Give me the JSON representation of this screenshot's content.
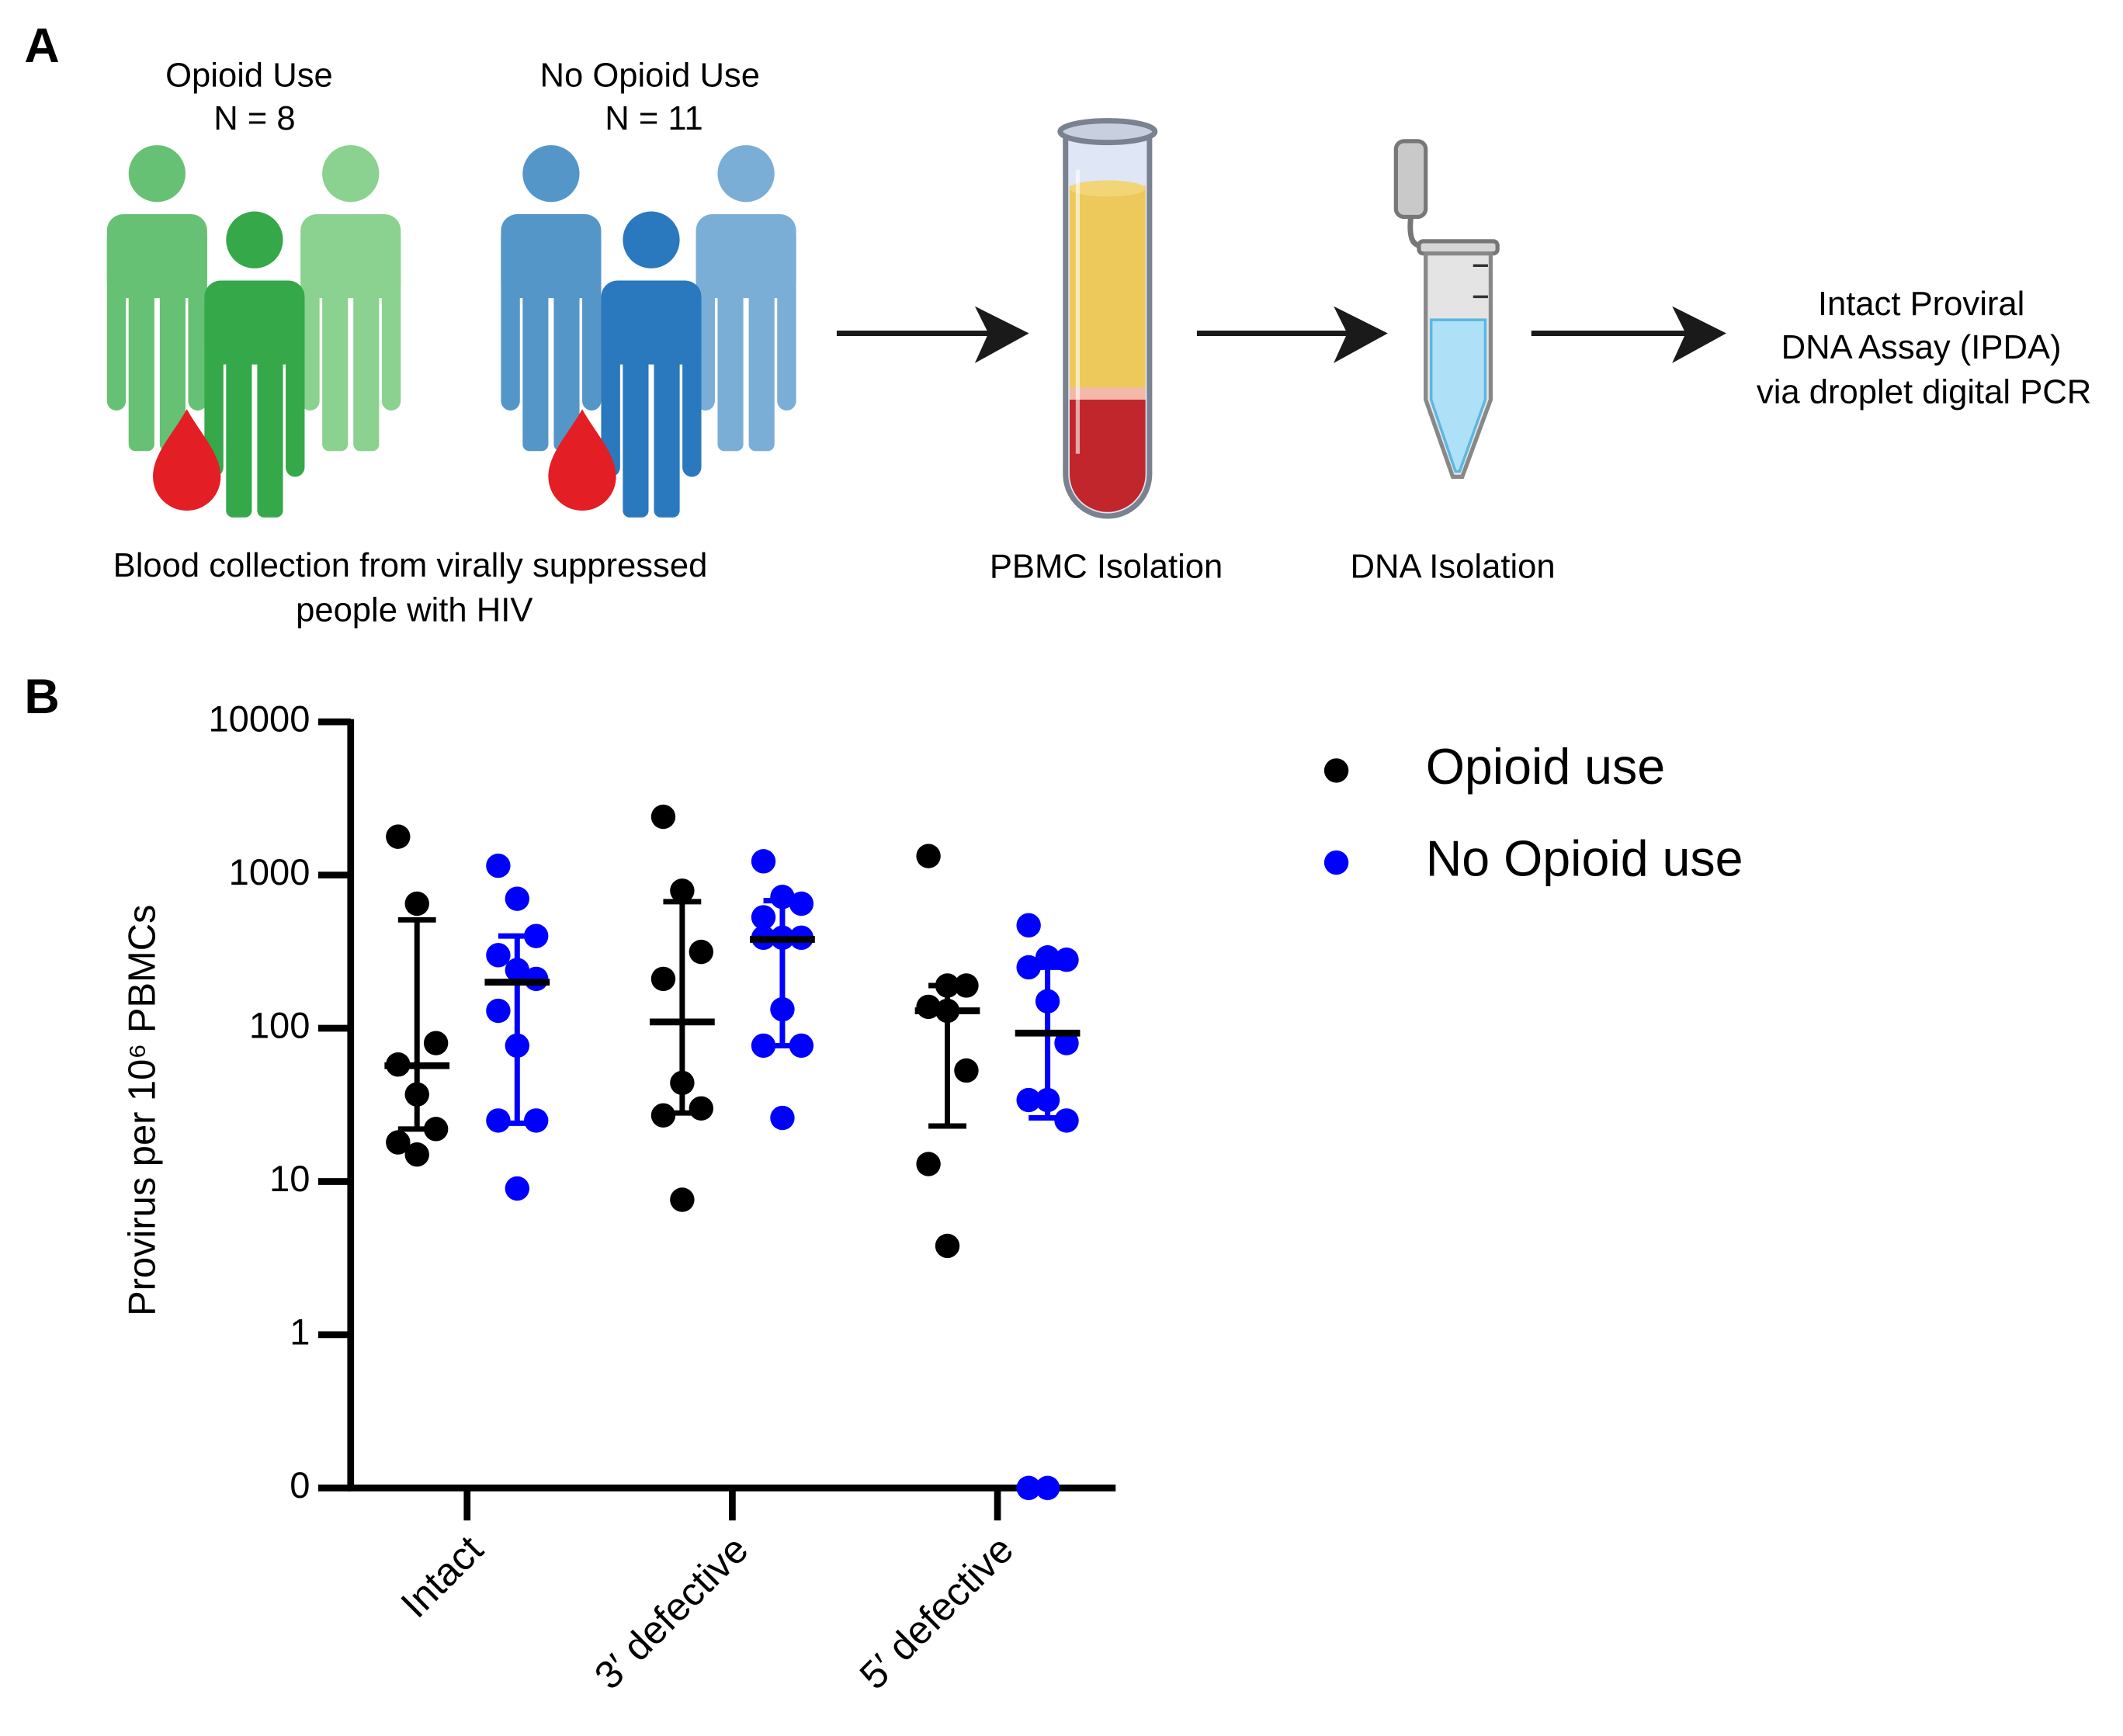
{
  "panel_labels": [
    "A",
    "B"
  ],
  "diagram": {
    "groups": [
      {
        "label": "Opioid Use",
        "n": "N = 8"
      },
      {
        "label": "No Opioid Use",
        "n": "N = 11"
      }
    ],
    "caption": [
      "Blood collection from virally suppressed",
      "people with HIV"
    ],
    "steps": [
      "PBMC Isolation",
      "DNA Isolation"
    ],
    "assay": [
      "Intact Proviral",
      "DNA Assay (IPDA)",
      "via droplet digital PCR"
    ]
  },
  "chart_data": {
    "type": "scatter",
    "y_label": "Provirus per 10⁶ PBMCs",
    "categories": [
      "Intact",
      "3′ defective",
      "5′ defective"
    ],
    "log_scale": true,
    "legend": "upper right",
    "ylim": [
      0,
      10000
    ],
    "yticks": [
      0,
      1,
      10,
      100,
      1000,
      10000
    ],
    "series": [
      {
        "name": "Opioid use",
        "color": "#000000",
        "values": [
          [
            1780,
            650,
            80,
            58,
            37,
            22,
            18,
            15
          ],
          [
            2400,
            790,
            315,
            210,
            44,
            30,
            27,
            7.6
          ],
          [
            1330,
            190,
            190,
            138,
            130,
            53,
            13,
            3.8
          ]
        ],
        "median": [
          57,
          110,
          130
        ],
        "q1": [
          22,
          28,
          23
        ],
        "q3": [
          510,
          670,
          190
        ]
      },
      {
        "name": "No Opioid use",
        "color": "#0000ff",
        "values": [
          [
            1150,
            700,
            400,
            300,
            240,
            210,
            130,
            77,
            25,
            25,
            9
          ],
          [
            1230,
            720,
            650,
            530,
            390,
            390,
            390,
            133,
            77,
            77,
            26
          ],
          [
            470,
            290,
            280,
            250,
            150,
            80,
            34,
            34,
            25,
            0,
            0
          ]
        ],
        "median": [
          200,
          380,
          93
        ],
        "q1": [
          24,
          77,
          26
        ],
        "q3": [
          400,
          680,
          250
        ]
      }
    ]
  }
}
